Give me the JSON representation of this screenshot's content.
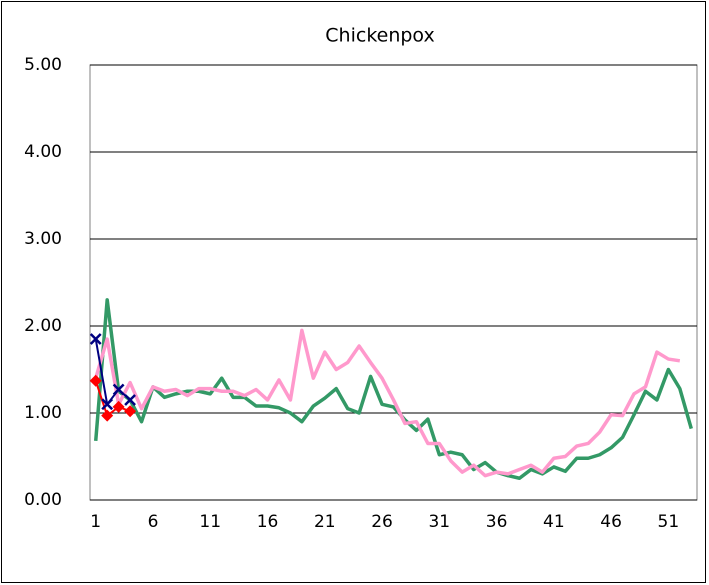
{
  "chart_data": {
    "type": "line",
    "title": "Chickenpox",
    "x": [
      1,
      2,
      3,
      4,
      5,
      6,
      7,
      8,
      9,
      10,
      11,
      12,
      13,
      14,
      15,
      16,
      17,
      18,
      19,
      20,
      21,
      22,
      23,
      24,
      25,
      26,
      27,
      28,
      29,
      30,
      31,
      32,
      33,
      34,
      35,
      36,
      37,
      38,
      39,
      40,
      41,
      42,
      43,
      44,
      45,
      46,
      47,
      48,
      49,
      50,
      51,
      52,
      53
    ],
    "xlim": [
      0.5,
      53.5
    ],
    "xticks": [
      1,
      6,
      11,
      16,
      21,
      26,
      31,
      36,
      41,
      46,
      51
    ],
    "ylim": [
      0,
      5
    ],
    "yticks": [
      {
        "value": 0,
        "label": "0.00"
      },
      {
        "value": 1,
        "label": "1.00"
      },
      {
        "value": 2,
        "label": "2.00"
      },
      {
        "value": 3,
        "label": "3.00"
      },
      {
        "value": 4,
        "label": "4.00"
      },
      {
        "value": 5,
        "label": "5.00"
      }
    ],
    "grid": true,
    "series": [
      {
        "color": "#339966",
        "values": [
          0.68,
          2.3,
          1.25,
          1.15,
          0.9,
          1.3,
          1.18,
          1.22,
          1.25,
          1.25,
          1.22,
          1.4,
          1.18,
          1.18,
          1.08,
          1.08,
          1.06,
          1.0,
          0.9,
          1.08,
          1.17,
          1.28,
          1.05,
          1.0,
          1.42,
          1.1,
          1.07,
          0.92,
          0.8,
          0.93,
          0.52,
          0.55,
          0.52,
          0.35,
          0.43,
          0.32,
          0.28,
          0.25,
          0.35,
          0.3,
          0.38,
          0.33,
          0.48,
          0.48,
          0.52,
          0.6,
          0.72,
          0.98,
          1.25,
          1.15,
          1.5,
          1.28,
          0.82
        ]
      },
      {
        "color": "#ff99cc",
        "values": [
          1.4,
          1.85,
          1.1,
          1.35,
          1.05,
          1.3,
          1.25,
          1.27,
          1.2,
          1.28,
          1.28,
          1.25,
          1.25,
          1.2,
          1.27,
          1.15,
          1.38,
          1.15,
          1.95,
          1.4,
          1.7,
          1.5,
          1.58,
          1.77,
          1.58,
          1.4,
          1.15,
          0.88,
          0.9,
          0.65,
          0.65,
          0.45,
          0.32,
          0.4,
          0.28,
          0.32,
          0.3,
          0.35,
          0.4,
          0.32,
          0.48,
          0.5,
          0.62,
          0.65,
          0.78,
          0.98,
          0.97,
          1.22,
          1.3,
          1.7,
          1.62,
          1.6,
          null
        ]
      },
      {
        "color": "#ff0000",
        "marker": "diamond",
        "values": [
          1.37,
          0.97,
          1.07,
          1.02,
          null,
          null,
          null,
          null,
          null,
          null,
          null,
          null,
          null,
          null,
          null,
          null,
          null,
          null,
          null,
          null,
          null,
          null,
          null,
          null,
          null,
          null,
          null,
          null,
          null,
          null,
          null,
          null,
          null,
          null,
          null,
          null,
          null,
          null,
          null,
          null,
          null,
          null,
          null,
          null,
          null,
          null,
          null,
          null,
          null,
          null,
          null,
          null,
          null
        ]
      },
      {
        "color": "#000080",
        "marker": "x",
        "values": [
          1.85,
          1.1,
          1.27,
          1.15,
          null,
          null,
          null,
          null,
          null,
          null,
          null,
          null,
          null,
          null,
          null,
          null,
          null,
          null,
          null,
          null,
          null,
          null,
          null,
          null,
          null,
          null,
          null,
          null,
          null,
          null,
          null,
          null,
          null,
          null,
          null,
          null,
          null,
          null,
          null,
          null,
          null,
          null,
          null,
          null,
          null,
          null,
          null,
          null,
          null,
          null,
          null,
          null,
          null
        ]
      }
    ]
  }
}
